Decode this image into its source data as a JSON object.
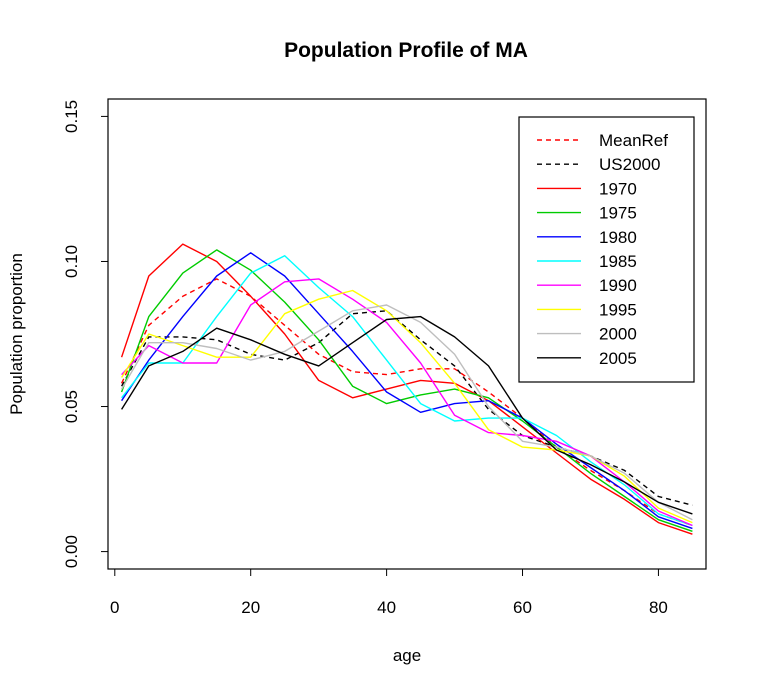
{
  "chart_data": {
    "type": "line",
    "title": "Population Profile of MA",
    "xlabel": "age",
    "ylabel": "Population proportion",
    "xlim": [
      -1,
      87
    ],
    "ylim": [
      -0.006,
      0.156
    ],
    "x_ticks": [
      0,
      20,
      40,
      60,
      80
    ],
    "x_tick_labels": [
      "0",
      "20",
      "40",
      "60",
      "80"
    ],
    "y_ticks": [
      0.0,
      0.05,
      0.1,
      0.15
    ],
    "y_tick_labels": [
      "0.00",
      "0.05",
      "0.10",
      "0.15"
    ],
    "grid": false,
    "legend_position": "top-right",
    "x": [
      1,
      5,
      10,
      15,
      20,
      25,
      30,
      35,
      40,
      45,
      50,
      55,
      60,
      65,
      70,
      75,
      80,
      85
    ],
    "series": [
      {
        "name": "MeanRef",
        "color": "#ff0000",
        "dash": true,
        "values": [
          0.058,
          0.078,
          0.088,
          0.094,
          0.088,
          0.078,
          0.068,
          0.062,
          0.061,
          0.063,
          0.063,
          0.055,
          0.046,
          0.036,
          0.028,
          0.021,
          0.013,
          0.009
        ]
      },
      {
        "name": "US2000",
        "color": "#000000",
        "dash": true,
        "values": [
          0.057,
          0.074,
          0.074,
          0.073,
          0.068,
          0.066,
          0.072,
          0.082,
          0.083,
          0.073,
          0.064,
          0.049,
          0.04,
          0.036,
          0.033,
          0.028,
          0.019,
          0.016
        ]
      },
      {
        "name": "1970",
        "color": "#ff0000",
        "dash": false,
        "values": [
          0.067,
          0.095,
          0.106,
          0.1,
          0.088,
          0.075,
          0.059,
          0.053,
          0.056,
          0.059,
          0.058,
          0.052,
          0.043,
          0.034,
          0.025,
          0.018,
          0.01,
          0.006
        ]
      },
      {
        "name": "1975",
        "color": "#00cc00",
        "dash": false,
        "values": [
          0.055,
          0.081,
          0.096,
          0.104,
          0.097,
          0.086,
          0.073,
          0.057,
          0.051,
          0.054,
          0.056,
          0.053,
          0.045,
          0.036,
          0.027,
          0.019,
          0.011,
          0.007
        ]
      },
      {
        "name": "1980",
        "color": "#0000ff",
        "dash": false,
        "values": [
          0.052,
          0.066,
          0.081,
          0.095,
          0.103,
          0.095,
          0.082,
          0.069,
          0.055,
          0.048,
          0.051,
          0.052,
          0.046,
          0.037,
          0.029,
          0.021,
          0.012,
          0.008
        ]
      },
      {
        "name": "1985",
        "color": "#00ffff",
        "dash": false,
        "values": [
          0.053,
          0.065,
          0.065,
          0.081,
          0.096,
          0.102,
          0.091,
          0.081,
          0.066,
          0.051,
          0.045,
          0.046,
          0.046,
          0.04,
          0.031,
          0.023,
          0.013,
          0.009
        ]
      },
      {
        "name": "1990",
        "color": "#ff00ff",
        "dash": false,
        "values": [
          0.061,
          0.071,
          0.065,
          0.065,
          0.085,
          0.093,
          0.094,
          0.087,
          0.079,
          0.065,
          0.047,
          0.041,
          0.04,
          0.038,
          0.033,
          0.024,
          0.014,
          0.009
        ]
      },
      {
        "name": "1995",
        "color": "#ffff00",
        "dash": false,
        "values": [
          0.06,
          0.075,
          0.071,
          0.067,
          0.067,
          0.082,
          0.087,
          0.09,
          0.083,
          0.072,
          0.058,
          0.042,
          0.036,
          0.035,
          0.033,
          0.026,
          0.015,
          0.01
        ]
      },
      {
        "name": "2000",
        "color": "#bebebe",
        "dash": false,
        "values": [
          0.056,
          0.072,
          0.072,
          0.07,
          0.066,
          0.069,
          0.076,
          0.083,
          0.085,
          0.079,
          0.068,
          0.05,
          0.038,
          0.036,
          0.033,
          0.027,
          0.017,
          0.011
        ]
      },
      {
        "name": "2005",
        "color": "#000000",
        "dash": false,
        "values": [
          0.049,
          0.064,
          0.069,
          0.077,
          0.073,
          0.068,
          0.064,
          0.072,
          0.08,
          0.081,
          0.074,
          0.064,
          0.046,
          0.035,
          0.03,
          0.024,
          0.017,
          0.013
        ]
      }
    ]
  }
}
